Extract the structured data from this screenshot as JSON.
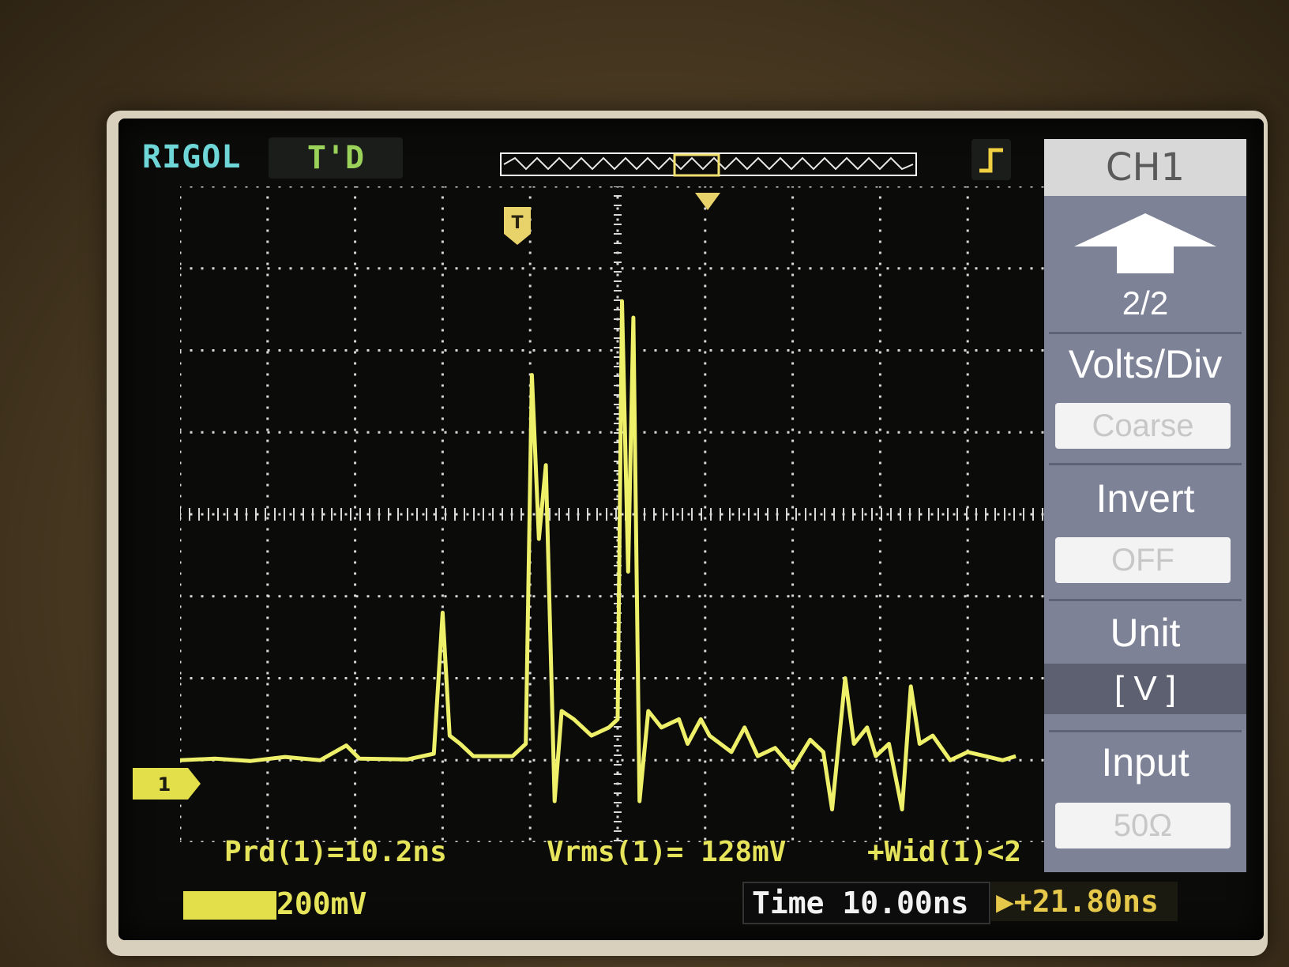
{
  "header": {
    "brand": "RIGOL",
    "trigger_status": "T'D",
    "trigger_slope_icon": "rising-edge-icon"
  },
  "measurements": {
    "period": "Prd(1)=10.2ns",
    "vrms": "Vrms(1)= 128mV",
    "width": "+Wid(1)<2"
  },
  "status_bar": {
    "channel_scale": "200mV",
    "timebase": "Time 10.00ns",
    "trigger_offset": "▶+21.80ns"
  },
  "menu": {
    "title": "CH1",
    "page": "2/2",
    "volts_div_label": "Volts/Div",
    "volts_div_value": "Coarse",
    "invert_label": "Invert",
    "invert_value": "OFF",
    "unit_label": "Unit",
    "unit_value": "[  V  ]",
    "input_label": "Input",
    "input_value": "50Ω"
  },
  "waveform": {
    "channel_marker": "1",
    "trigger_marker": "T",
    "color": "#eef06a",
    "grid_divisions_x": 10,
    "grid_divisions_y": 8,
    "samples": [
      [
        0.0,
        0.0
      ],
      [
        0.4,
        0.02
      ],
      [
        0.8,
        -0.01
      ],
      [
        1.2,
        0.04
      ],
      [
        1.6,
        0.0
      ],
      [
        1.9,
        0.18
      ],
      [
        2.05,
        0.02
      ],
      [
        2.6,
        0.01
      ],
      [
        2.9,
        0.08
      ],
      [
        3.0,
        1.8
      ],
      [
        3.08,
        0.3
      ],
      [
        3.2,
        0.2
      ],
      [
        3.35,
        0.05
      ],
      [
        3.8,
        0.05
      ],
      [
        3.95,
        0.2
      ],
      [
        4.02,
        4.7
      ],
      [
        4.1,
        2.7
      ],
      [
        4.18,
        3.6
      ],
      [
        4.28,
        -0.5
      ],
      [
        4.36,
        0.6
      ],
      [
        4.5,
        0.5
      ],
      [
        4.7,
        0.3
      ],
      [
        4.9,
        0.4
      ],
      [
        5.0,
        0.5
      ],
      [
        5.05,
        5.6
      ],
      [
        5.12,
        2.3
      ],
      [
        5.18,
        5.4
      ],
      [
        5.25,
        -0.5
      ],
      [
        5.35,
        0.6
      ],
      [
        5.5,
        0.4
      ],
      [
        5.7,
        0.5
      ],
      [
        5.8,
        0.2
      ],
      [
        5.95,
        0.5
      ],
      [
        6.05,
        0.3
      ],
      [
        6.3,
        0.1
      ],
      [
        6.45,
        0.4
      ],
      [
        6.6,
        0.05
      ],
      [
        6.8,
        0.15
      ],
      [
        7.0,
        -0.1
      ],
      [
        7.2,
        0.25
      ],
      [
        7.35,
        0.1
      ],
      [
        7.45,
        -0.6
      ],
      [
        7.6,
        1.0
      ],
      [
        7.7,
        0.2
      ],
      [
        7.85,
        0.4
      ],
      [
        7.95,
        0.05
      ],
      [
        8.1,
        0.2
      ],
      [
        8.25,
        -0.6
      ],
      [
        8.35,
        0.9
      ],
      [
        8.45,
        0.2
      ],
      [
        8.6,
        0.3
      ],
      [
        8.8,
        0.0
      ],
      [
        9.0,
        0.1
      ],
      [
        9.2,
        0.05
      ],
      [
        9.4,
        0.0
      ],
      [
        9.55,
        0.05
      ]
    ]
  }
}
